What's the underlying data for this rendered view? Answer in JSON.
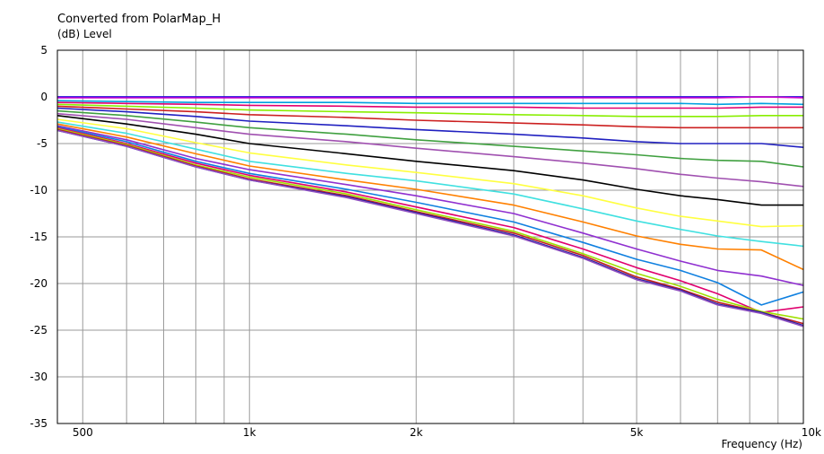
{
  "chart_data": {
    "type": "line",
    "title": "Converted from PolarMap_H",
    "ylabel": "(dB)  Level",
    "xlabel": "Frequency  (Hz)",
    "x_scale": "log",
    "xlim": [
      450,
      10000
    ],
    "ylim": [
      -35,
      5
    ],
    "grid": true,
    "x_ticks": [
      {
        "value": 500,
        "label": "500"
      },
      {
        "value": 1000,
        "label": "1k"
      },
      {
        "value": 2000,
        "label": "2k"
      },
      {
        "value": 5000,
        "label": "5k"
      },
      {
        "value": 10000,
        "label": "10k"
      }
    ],
    "y_ticks": [
      5,
      0,
      -5,
      -10,
      -15,
      -20,
      -25,
      -30,
      -35
    ],
    "x": [
      450,
      600,
      800,
      1000,
      1500,
      2000,
      3000,
      4000,
      5000,
      6000,
      7000,
      8400,
      10000
    ],
    "series": [
      {
        "color": "#FF8000",
        "values": [
          0,
          0,
          0,
          0,
          0,
          0,
          0,
          0,
          0,
          0,
          0,
          0,
          0
        ]
      },
      {
        "color": "#0000FF",
        "values": [
          0,
          0,
          0,
          0,
          0,
          0,
          0,
          0,
          0,
          0,
          0,
          0,
          0
        ]
      },
      {
        "color": "#CC00CC",
        "values": [
          -0.1,
          -0.1,
          -0.1,
          -0.1,
          -0.1,
          -0.1,
          -0.1,
          -0.1,
          -0.1,
          -0.1,
          -0.1,
          0,
          -0.1
        ]
      },
      {
        "color": "#00A0E0",
        "values": [
          -0.4,
          -0.5,
          -0.6,
          -0.6,
          -0.6,
          -0.7,
          -0.7,
          -0.7,
          -0.7,
          -0.7,
          -0.8,
          -0.7,
          -0.8
        ]
      },
      {
        "color": "#E00070",
        "values": [
          -0.6,
          -0.7,
          -0.8,
          -0.9,
          -1.0,
          -1.1,
          -1.1,
          -1.2,
          -1.2,
          -1.2,
          -1.2,
          -1.1,
          -1.1
        ]
      },
      {
        "color": "#88EE00",
        "values": [
          -0.8,
          -1.0,
          -1.2,
          -1.4,
          -1.6,
          -1.7,
          -1.9,
          -2.0,
          -2.1,
          -2.1,
          -2.1,
          -2.0,
          -2.0
        ]
      },
      {
        "color": "#CC2020",
        "values": [
          -1.0,
          -1.3,
          -1.6,
          -1.9,
          -2.2,
          -2.5,
          -2.8,
          -3.0,
          -3.2,
          -3.3,
          -3.3,
          -3.3,
          -3.3
        ]
      },
      {
        "color": "#2020C0",
        "values": [
          -1.2,
          -1.6,
          -2.1,
          -2.6,
          -3.1,
          -3.5,
          -4.0,
          -4.4,
          -4.8,
          -5.0,
          -5.0,
          -5.0,
          -5.4
        ]
      },
      {
        "color": "#40A040",
        "values": [
          -1.5,
          -2.0,
          -2.7,
          -3.3,
          -4.0,
          -4.6,
          -5.3,
          -5.8,
          -6.2,
          -6.6,
          -6.8,
          -6.9,
          -7.5
        ]
      },
      {
        "color": "#A050B0",
        "values": [
          -1.8,
          -2.4,
          -3.3,
          -4.0,
          -4.8,
          -5.5,
          -6.4,
          -7.1,
          -7.7,
          -8.3,
          -8.7,
          -9.1,
          -9.6
        ]
      },
      {
        "color": "#000000",
        "values": [
          -2.0,
          -2.9,
          -4.0,
          -5.0,
          -6.1,
          -6.9,
          -7.9,
          -8.9,
          -9.9,
          -10.6,
          -11.0,
          -11.6,
          -11.6
        ]
      },
      {
        "color": "#FFFF40",
        "values": [
          -2.4,
          -3.4,
          -4.9,
          -6.0,
          -7.3,
          -8.1,
          -9.3,
          -10.6,
          -11.9,
          -12.8,
          -13.3,
          -13.9,
          -13.8
        ]
      },
      {
        "color": "#40E0E0",
        "values": [
          -2.7,
          -3.9,
          -5.6,
          -6.9,
          -8.2,
          -9.0,
          -10.4,
          -12.0,
          -13.3,
          -14.2,
          -14.9,
          -15.5,
          -16.0
        ]
      },
      {
        "color": "#FF8000",
        "values": [
          -2.9,
          -4.3,
          -6.1,
          -7.4,
          -8.9,
          -9.9,
          -11.6,
          -13.4,
          -14.9,
          -15.8,
          -16.3,
          -16.4,
          -18.5
        ]
      },
      {
        "color": "#9030D0",
        "values": [
          -3.1,
          -4.6,
          -6.6,
          -7.8,
          -9.4,
          -10.6,
          -12.5,
          -14.6,
          -16.3,
          -17.6,
          -18.6,
          -19.2,
          -20.2
        ]
      },
      {
        "color": "#1080E0",
        "values": [
          -3.2,
          -4.8,
          -6.9,
          -8.2,
          -9.9,
          -11.3,
          -13.4,
          -15.6,
          -17.4,
          -18.6,
          -19.9,
          -22.3,
          -20.9
        ]
      },
      {
        "color": "#E0006E",
        "values": [
          -3.3,
          -5.0,
          -7.1,
          -8.4,
          -10.2,
          -11.8,
          -14.0,
          -16.3,
          -18.3,
          -19.7,
          -21.1,
          -23.1,
          -22.5
        ]
      },
      {
        "color": "#A0E000",
        "values": [
          -3.4,
          -5.1,
          -7.3,
          -8.6,
          -10.4,
          -12.1,
          -14.4,
          -16.8,
          -18.9,
          -20.3,
          -21.7,
          -23.0,
          -23.8
        ]
      },
      {
        "color": "#C02020",
        "values": [
          -3.5,
          -5.2,
          -7.4,
          -8.8,
          -10.6,
          -12.3,
          -14.6,
          -17.0,
          -19.3,
          -20.6,
          -22.0,
          -23.1,
          -24.3
        ]
      },
      {
        "color": "#2020A0",
        "values": [
          -3.6,
          -5.3,
          -7.5,
          -8.9,
          -10.7,
          -12.4,
          -14.8,
          -17.2,
          -19.5,
          -20.7,
          -22.2,
          -23.1,
          -24.5
        ]
      },
      {
        "color": "#9050C0",
        "values": [
          -3.6,
          -5.3,
          -7.5,
          -8.9,
          -10.8,
          -12.5,
          -14.9,
          -17.3,
          -19.6,
          -20.8,
          -22.3,
          -23.2,
          -24.6
        ]
      }
    ]
  }
}
